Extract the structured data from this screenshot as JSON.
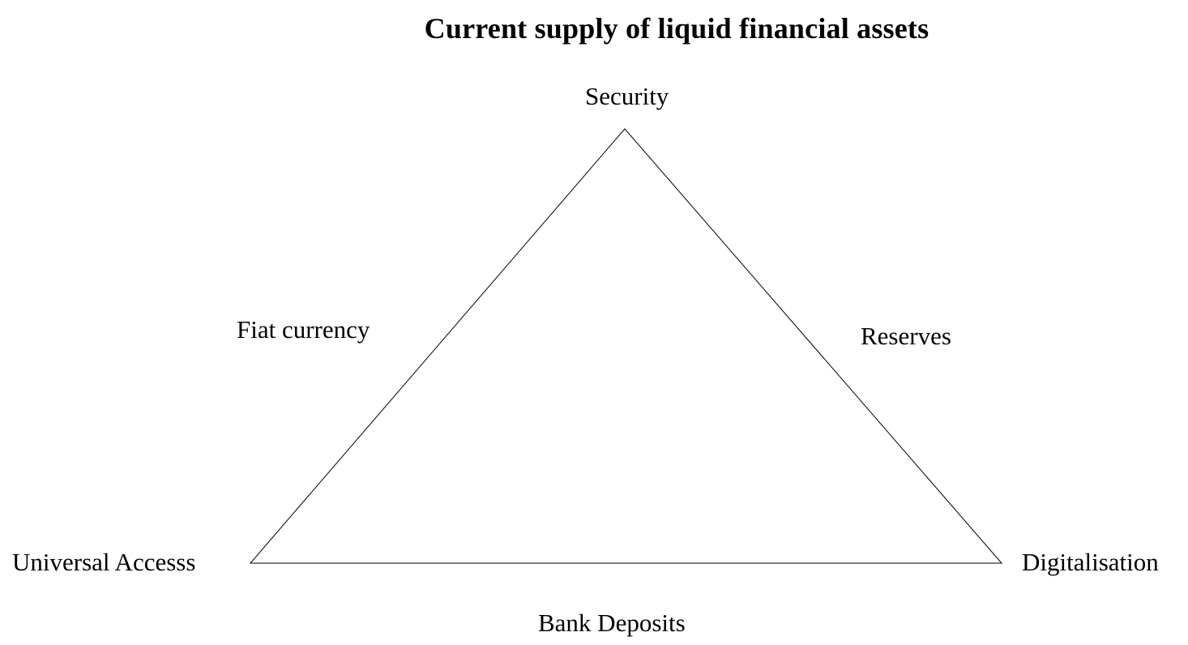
{
  "title": "Current supply of liquid financial assets",
  "vertices": {
    "top": "Security",
    "bottom_left": "Universal Accesss",
    "bottom_right": "Digitalisation"
  },
  "edges": {
    "left": "Fiat currency",
    "right": "Reserves",
    "bottom": "Bank Deposits"
  },
  "colors": {
    "line": "#000000",
    "background": "#ffffff"
  }
}
